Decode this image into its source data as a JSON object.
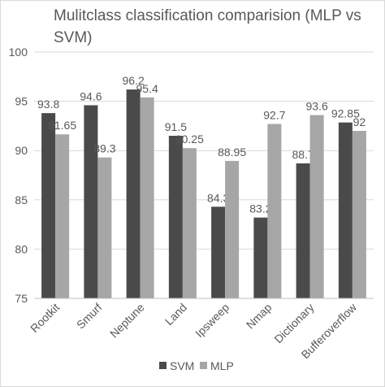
{
  "chart_data": {
    "type": "bar",
    "title": "Mulitclass classification comparision (MLP vs SVM)",
    "categories": [
      "Rootkit",
      "Smurf",
      "Neptune",
      "Land",
      "Ipsweep",
      "Nmap",
      "Dictionary",
      "Bufferoverflow"
    ],
    "series": [
      {
        "name": "SVM",
        "values": [
          93.8,
          94.6,
          96.2,
          91.5,
          84.3,
          83.2,
          88.7,
          92.85
        ],
        "color": "#4a4a4a"
      },
      {
        "name": "MLP",
        "values": [
          91.65,
          89.3,
          95.4,
          90.25,
          88.95,
          92.7,
          93.6,
          92
        ],
        "color": "#a6a6a6"
      }
    ],
    "data_labels": [
      [
        "93.8",
        "94.6",
        "96.2",
        "91.5",
        "84.3",
        "83.2",
        "88.7",
        "92.85"
      ],
      [
        "91.65",
        "89.3",
        "95.4",
        "90.25",
        "88.95",
        "92.7",
        "93.6",
        "92"
      ]
    ],
    "ylim": [
      75,
      100
    ],
    "yticks": [
      "75",
      "80",
      "85",
      "90",
      "95",
      "100"
    ],
    "grid": true,
    "legend": "bottom"
  }
}
